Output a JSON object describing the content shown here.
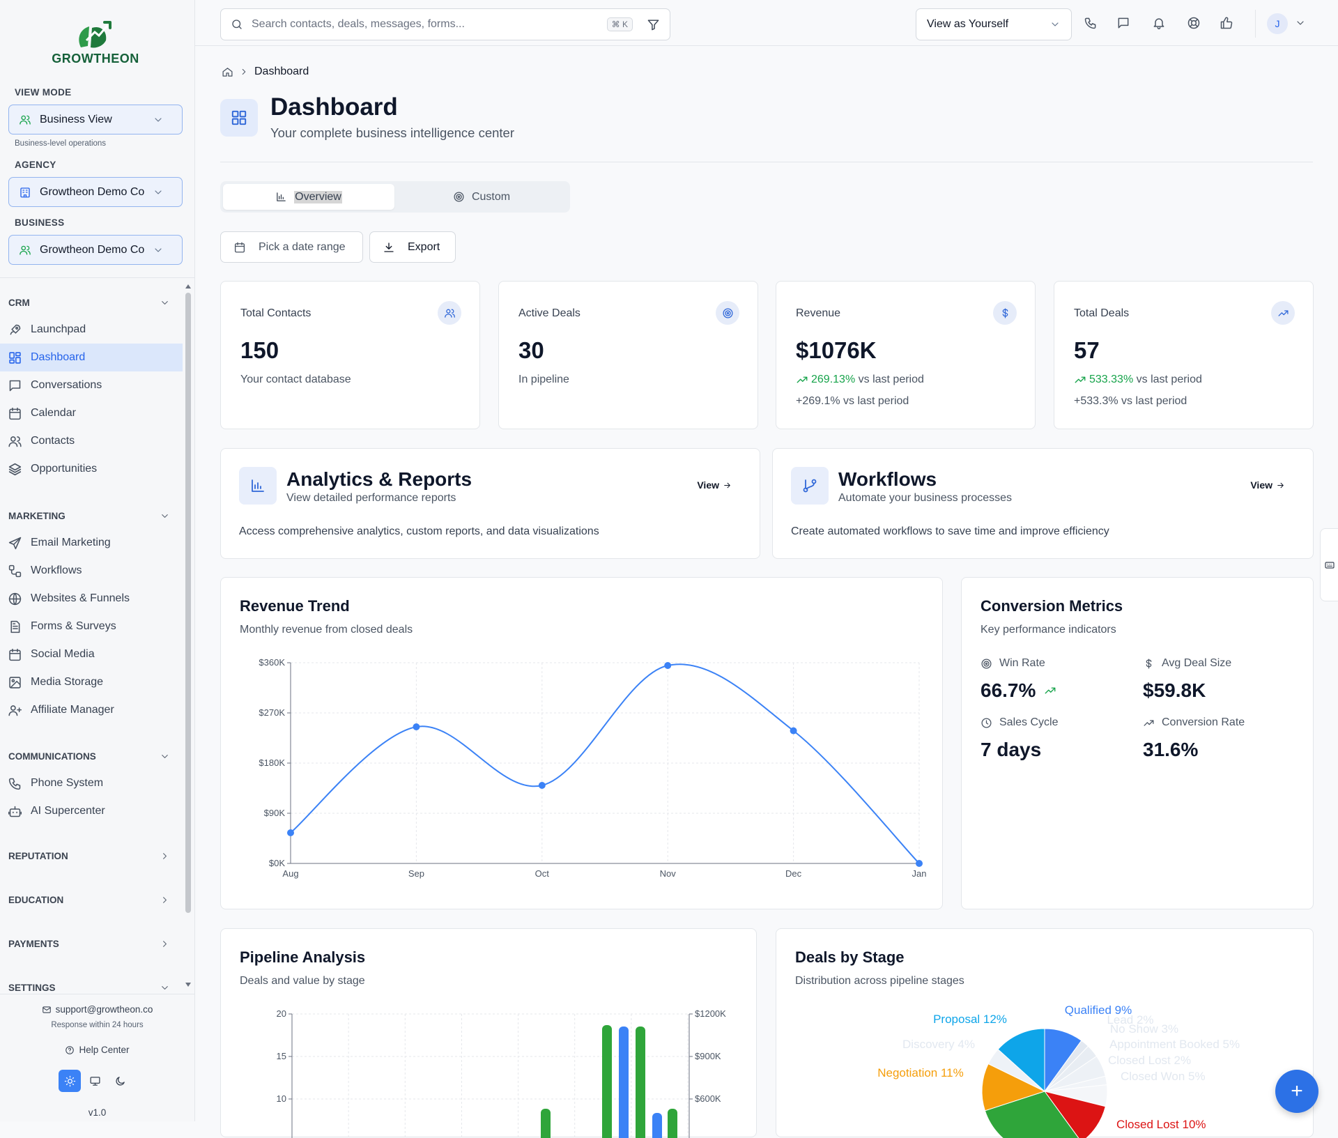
{
  "brand": {
    "name": "GROWTHEON"
  },
  "sidebar": {
    "view_mode_label": "VIEW MODE",
    "view_mode_value": "Business View",
    "view_mode_note": "Business-level operations",
    "agency_label": "AGENCY",
    "agency_value": "Growtheon Demo Co",
    "business_label": "BUSINESS",
    "business_value": "Growtheon Demo Co",
    "groups": {
      "crm": "CRM",
      "marketing": "MARKETING",
      "communications": "COMMUNICATIONS",
      "reputation": "REPUTATION",
      "education": "EDUCATION",
      "payments": "PAYMENTS",
      "settings": "SETTINGS"
    },
    "items": {
      "launchpad": "Launchpad",
      "dashboard": "Dashboard",
      "conversations": "Conversations",
      "calendar": "Calendar",
      "contacts": "Contacts",
      "opportunities": "Opportunities",
      "email_marketing": "Email Marketing",
      "workflows": "Workflows",
      "websites": "Websites & Funnels",
      "forms": "Forms & Surveys",
      "social": "Social Media",
      "media": "Media Storage",
      "affiliate": "Affiliate Manager",
      "phone": "Phone System",
      "ai": "AI Supercenter"
    },
    "footer": {
      "email": "support@growtheon.co",
      "response": "Response within 24 hours",
      "help": "Help Center",
      "version": "v1.0"
    }
  },
  "topbar": {
    "search_placeholder": "Search contacts, deals, messages, forms...",
    "shortcut": "⌘ K",
    "view_as": "View as Yourself",
    "avatar_initial": "J"
  },
  "page": {
    "breadcrumb_current": "Dashboard",
    "title": "Dashboard",
    "subtitle": "Your complete business intelligence center",
    "tabs": {
      "overview": "Overview",
      "custom": "Custom"
    },
    "date_range": "Pick a date range",
    "export": "Export"
  },
  "stats": [
    {
      "title": "Total Contacts",
      "value": "150",
      "desc": "Your contact database"
    },
    {
      "title": "Active Deals",
      "value": "30",
      "desc": "In pipeline"
    },
    {
      "title": "Revenue",
      "value": "$1076K",
      "change": "269.13%",
      "change_suffix": "vs last period",
      "sub": "+269.1% vs last period"
    },
    {
      "title": "Total Deals",
      "value": "57",
      "change": "533.33%",
      "change_suffix": "vs last period",
      "sub": "+533.3% vs last period"
    }
  ],
  "quick": [
    {
      "title": "Analytics & Reports",
      "sub": "View detailed performance reports",
      "view": "View",
      "desc": "Access comprehensive analytics, custom reports, and data visualizations"
    },
    {
      "title": "Workflows",
      "sub": "Automate your business processes",
      "view": "View",
      "desc": "Create automated workflows to save time and improve efficiency"
    }
  ],
  "revenue": {
    "title": "Revenue Trend",
    "subtitle": "Monthly revenue from closed deals"
  },
  "conversion": {
    "title": "Conversion Metrics",
    "subtitle": "Key performance indicators",
    "win_rate_label": "Win Rate",
    "win_rate": "66.7%",
    "avg_deal_label": "Avg Deal Size",
    "avg_deal": "$59.8K",
    "cycle_label": "Sales Cycle",
    "cycle": "7 days",
    "conv_label": "Conversion Rate",
    "conv": "31.6%"
  },
  "pipeline": {
    "title": "Pipeline Analysis",
    "subtitle": "Deals and value by stage"
  },
  "stages": {
    "title": "Deals by Stage",
    "subtitle": "Distribution across pipeline stages"
  },
  "colors": {
    "accent": "#2563eb",
    "green": "#16a34a",
    "brand": "#16613a"
  },
  "chart_data": [
    {
      "type": "line",
      "x": [
        "Aug",
        "Sep",
        "Oct",
        "Nov",
        "Dec",
        "Jan"
      ],
      "values": [
        55000,
        245000,
        140000,
        355000,
        238000,
        0
      ],
      "ylim": [
        0,
        360000
      ],
      "yticks": [
        "$0K",
        "$90K",
        "$180K",
        "$270K",
        "$360K"
      ],
      "grid": true
    },
    {
      "type": "bar",
      "left_yticks": [
        "10",
        "15",
        "20"
      ],
      "right_yticks": [
        "$600K",
        "$900K",
        "$1200K"
      ]
    },
    {
      "type": "pie",
      "slices": [
        {
          "label": "Qualified",
          "value": 9,
          "color": "#3b82f6"
        },
        {
          "label": "Lead",
          "value": 2,
          "color": "#e2e8f0"
        },
        {
          "label": "No Show",
          "value": 3,
          "color": "#e8edf3"
        },
        {
          "label": "Appointment Booked",
          "value": 5,
          "color": "#edf1f6"
        },
        {
          "label": "Closed Lost",
          "value": 2,
          "color": "#f1f4f8"
        },
        {
          "label": "Closed Won",
          "value": 5,
          "color": "#f4f6f9"
        },
        {
          "label": "Closed Lost",
          "value": 10,
          "color": "#dc1414"
        },
        {
          "label": "",
          "value": 27,
          "color": "#2fa53a"
        },
        {
          "label": "Negotiation",
          "value": 11,
          "color": "#f59e0b"
        },
        {
          "label": "Discovery",
          "value": 4,
          "color": "#eef2f7"
        },
        {
          "label": "Proposal",
          "value": 12,
          "color": "#0ea5e9"
        }
      ]
    }
  ]
}
